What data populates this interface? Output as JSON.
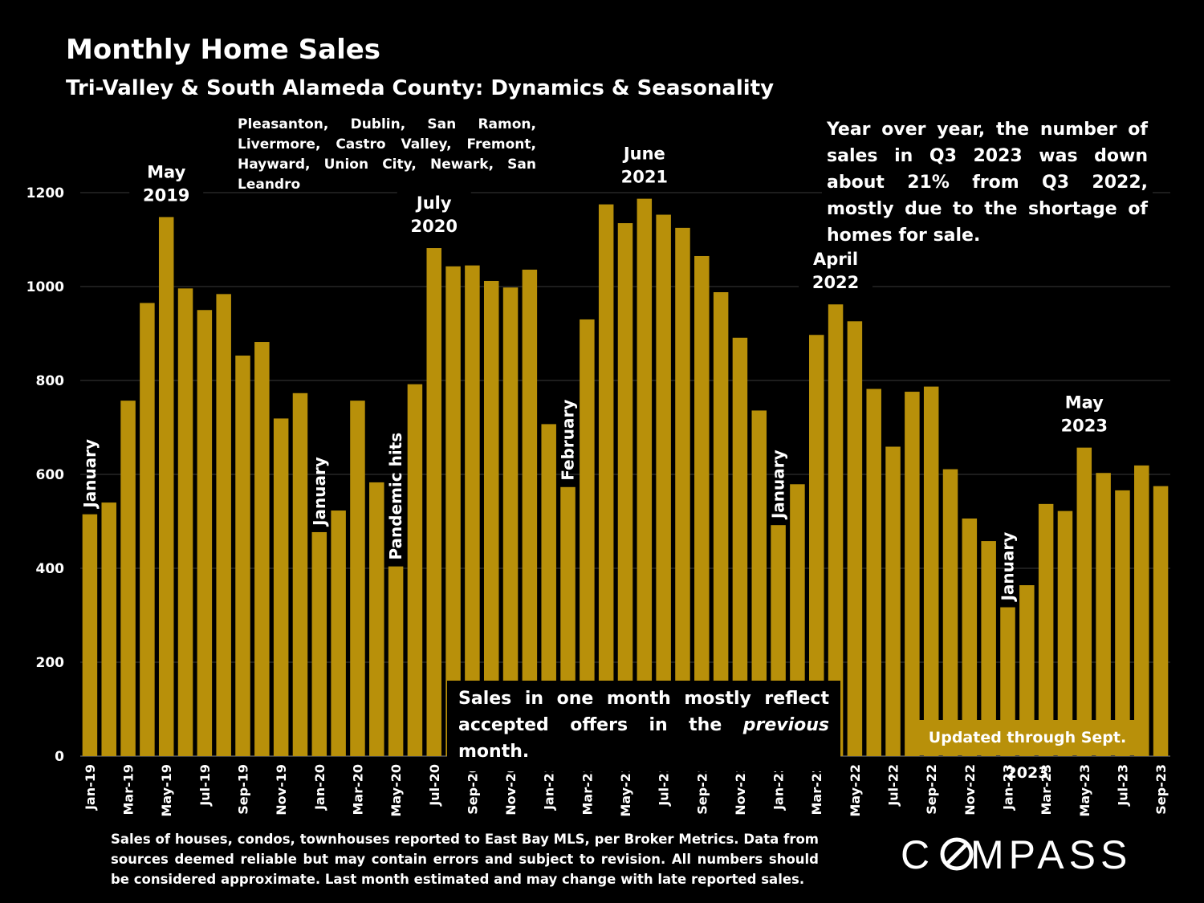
{
  "title": "Monthly Home Sales",
  "subtitle": "Tri-Valley & South Alameda County: Dynamics & Seasonality",
  "cities": [
    "Pleasanton, Dublin, San Ramon,",
    "Livermore, Castro Valley, Fremont,",
    "Hayward, Union City, Newark, San Leandro"
  ],
  "yoy_note": "Year over year, the number of sales in Q3 2023 was down about 21% from Q3 2022, mostly due to the shortage of homes for sale.",
  "offers_note": {
    "part1": "Sales in one month mostly reflect accepted offers in the ",
    "italic": "previous",
    "part2": " month."
  },
  "updated_note": "Updated through Sept. 2023",
  "footer": "Sales of houses, condos, townhouses reported to East Bay MLS, per Broker Metrics. Data from sources deemed reliable but may contain errors and subject to revision. All numbers should be considered approximate.  Last month estimated and may change with late reported sales.",
  "logo_text": "COMPASS",
  "colors": {
    "bar": "#b8900a",
    "background": "#000000",
    "text": "#ffffff",
    "grid": "#3a3a3a"
  },
  "chart_data": {
    "type": "bar",
    "ylim": [
      0,
      1200
    ],
    "yticks": [
      0,
      200,
      400,
      600,
      800,
      1000,
      1200
    ],
    "grid": true,
    "categories": [
      "Jan-19",
      "Feb-19",
      "Mar-19",
      "Apr-19",
      "May-19",
      "Jun-19",
      "Jul-19",
      "Aug-19",
      "Sep-19",
      "Oct-19",
      "Nov-19",
      "Dec-19",
      "Jan-20",
      "Feb-20",
      "Mar-20",
      "Apr-20",
      "May-20",
      "Jun-20",
      "Jul-20",
      "Aug-20",
      "Sep-20",
      "Oct-20",
      "Nov-20",
      "Dec-20",
      "Jan-21",
      "Feb-21",
      "Mar-21",
      "Apr-21",
      "May-21",
      "Jun-21",
      "Jul-21",
      "Aug-21",
      "Sep-21",
      "Oct-21",
      "Nov-21",
      "Dec-21",
      "Jan-22",
      "Feb-22",
      "Mar-22",
      "Apr-22",
      "May-22",
      "Jun-22",
      "Jul-22",
      "Aug-22",
      "Sep-22",
      "Oct-22",
      "Nov-22",
      "Dec-22",
      "Jan-23",
      "Feb-23",
      "Mar-23",
      "Apr-23",
      "May-23",
      "Jun-23",
      "Jul-23",
      "Aug-23",
      "Sep-23"
    ],
    "values": [
      515,
      540,
      757,
      965,
      1148,
      996,
      950,
      984,
      853,
      882,
      719,
      773,
      477,
      523,
      757,
      583,
      404,
      792,
      1082,
      1043,
      1045,
      1012,
      998,
      1036,
      707,
      573,
      930,
      1175,
      1135,
      1187,
      1153,
      1125,
      1065,
      988,
      891,
      736,
      492,
      579,
      897,
      962,
      926,
      782,
      659,
      776,
      787,
      611,
      506,
      458,
      317,
      364,
      537,
      522,
      657,
      603,
      566,
      619,
      575
    ],
    "annotations": [
      {
        "category": "Jan-19",
        "text": "January",
        "orientation": "vertical"
      },
      {
        "category": "May-19",
        "text": [
          "May",
          "2019"
        ],
        "orientation": "horizontal"
      },
      {
        "category": "Jan-20",
        "text": "January",
        "orientation": "vertical"
      },
      {
        "category": "May-20",
        "text": "Pandemic hits",
        "orientation": "vertical"
      },
      {
        "category": "Jul-20",
        "text": [
          "July",
          "2020"
        ],
        "orientation": "horizontal"
      },
      {
        "category": "Feb-21",
        "text": "February",
        "orientation": "vertical"
      },
      {
        "category": "Jun-21",
        "text": [
          "June",
          "2021"
        ],
        "orientation": "horizontal"
      },
      {
        "category": "Jan-22",
        "text": "January",
        "orientation": "vertical"
      },
      {
        "category": "Apr-22",
        "text": [
          "April",
          "2022"
        ],
        "orientation": "horizontal"
      },
      {
        "category": "Jan-23",
        "text": "January",
        "orientation": "vertical"
      },
      {
        "category": "May-23",
        "text": [
          "May",
          "2023"
        ],
        "orientation": "horizontal"
      }
    ]
  }
}
